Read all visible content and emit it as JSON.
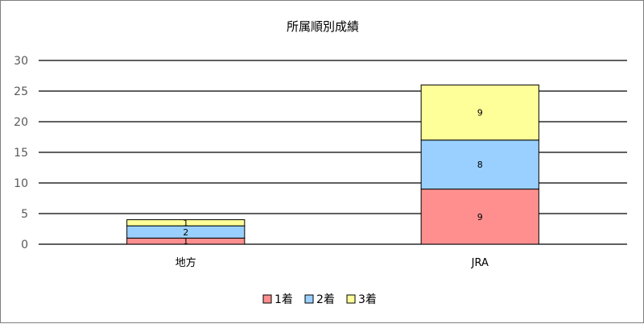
{
  "chart_data": {
    "type": "bar",
    "stacked": true,
    "title": "所属順別成績",
    "categories": [
      "地方",
      "JRA"
    ],
    "series": [
      {
        "name": "1着",
        "values": [
          1,
          9
        ],
        "color": "#ff8f8f"
      },
      {
        "name": "2着",
        "values": [
          2,
          8
        ],
        "color": "#99d0ff"
      },
      {
        "name": "3着",
        "values": [
          1,
          9
        ],
        "color": "#ffff99"
      }
    ],
    "ylim": [
      0,
      30
    ],
    "yticks": [
      0,
      5,
      10,
      15,
      20,
      25,
      30
    ],
    "grid": true,
    "legend": "bottom",
    "xlabel": "",
    "ylabel": ""
  }
}
